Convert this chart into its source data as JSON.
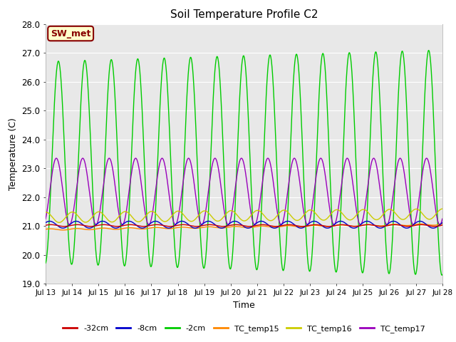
{
  "title": "Soil Temperature Profile C2",
  "ylabel": "Temperature (C)",
  "xlabel": "Time",
  "ylim": [
    19.0,
    28.0
  ],
  "yticks": [
    19.0,
    20.0,
    21.0,
    22.0,
    23.0,
    24.0,
    25.0,
    26.0,
    27.0,
    28.0
  ],
  "xtick_labels": [
    "Jul 13",
    "Jul 14",
    "Jul 15",
    "Jul 16",
    "Jul 17",
    "Jul 18",
    "Jul 19",
    "Jul 20",
    "Jul 21",
    "Jul 22",
    "Jul 23",
    "Jul 24",
    "Jul 25",
    "Jul 26",
    "Jul 27",
    "Jul 28"
  ],
  "n_days": 15,
  "pts_per_day": 96,
  "colors": {
    "-32cm": "#cc0000",
    "-8cm": "#0000cc",
    "-2cm": "#00cc00",
    "TC_temp15": "#ff8800",
    "TC_temp16": "#cccc00",
    "TC_temp17": "#9900bb"
  },
  "legend_labels": [
    "-32cm",
    "-8cm",
    "-2cm",
    "TC_temp15",
    "TC_temp16",
    "TC_temp17"
  ],
  "sw_met_label": "SW_met",
  "sw_met_bg": "#ffffcc",
  "sw_met_text": "#880000",
  "bg_color": "#e8e8e8",
  "line_width": 1.0,
  "figsize": [
    6.4,
    4.8
  ],
  "dpi": 100
}
